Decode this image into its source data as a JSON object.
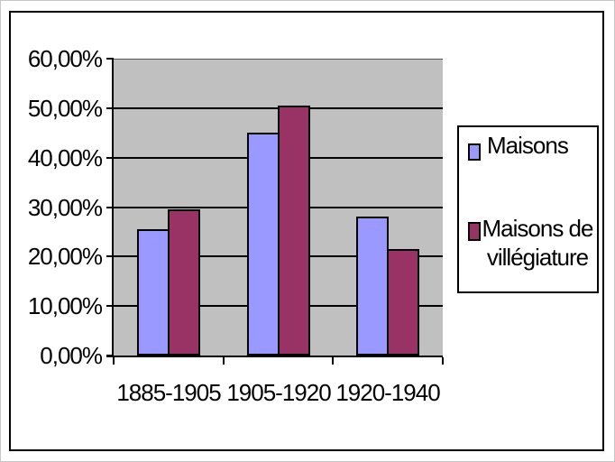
{
  "chart_data": {
    "type": "bar",
    "title": "",
    "xlabel": "",
    "ylabel": "",
    "categories": [
      "1885-1905",
      "1905-1920",
      "1920-1940"
    ],
    "series": [
      {
        "name": "Maisons",
        "color": "#9999FF",
        "values": [
          25.5,
          45.0,
          28.0
        ]
      },
      {
        "name": "Maisons de villégiature",
        "color": "#993366",
        "values": [
          29.5,
          50.5,
          21.5
        ]
      }
    ],
    "ylim": [
      0,
      60
    ],
    "ytick_step": 10,
    "ytick_labels": [
      "0,00%",
      "10,00%",
      "20,00%",
      "30,00%",
      "40,00%",
      "50,00%",
      "60,00%"
    ],
    "grid": true,
    "legend_position": "right",
    "plot_bg": "#C0C0C0",
    "axis_color": "#000000"
  }
}
